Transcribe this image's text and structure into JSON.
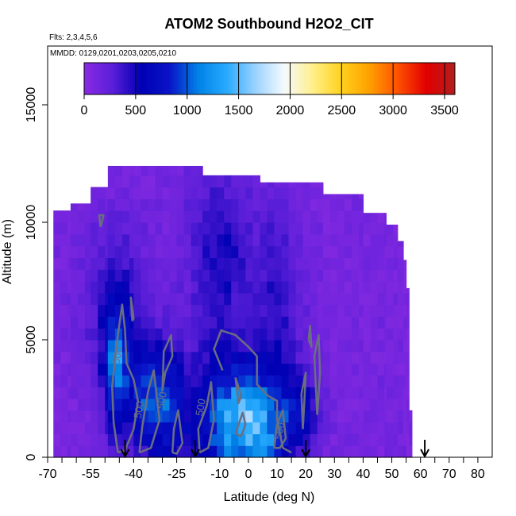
{
  "chart_data": {
    "type": "heatmap",
    "title": "ATOM2 Southbound H2O2_CIT",
    "flights_text": "Flts: 2,3,4,5,6",
    "dates_text": "MMDD: 0129,0201,0203,0205,0210",
    "xlabel": "Latitude (deg N)",
    "ylabel": "Altitude (m)",
    "xlim": [
      -70,
      85
    ],
    "ylim": [
      0,
      17500
    ],
    "x_ticks": [
      -70,
      -55,
      -40,
      -25,
      -10,
      0,
      10,
      20,
      30,
      40,
      50,
      60,
      70,
      80
    ],
    "x_ticks_minor": [
      -65,
      -60,
      -50,
      -45,
      -35,
      -30,
      -20,
      -15,
      -5,
      5,
      15,
      25,
      35,
      45,
      55,
      65,
      75
    ],
    "y_ticks": [
      0,
      5000,
      10000,
      15000
    ],
    "colorbar": {
      "min": 0,
      "max": 3600,
      "ticks": [
        0,
        500,
        1000,
        1500,
        2000,
        2500,
        3000,
        3500
      ],
      "colors": [
        "#8a2be2",
        "#5a1ed8",
        "#0000b4",
        "#0a14c8",
        "#0082e6",
        "#28aaff",
        "#9ad2ff",
        "#f4faff",
        "#fff08c",
        "#ffd21e",
        "#ffa000",
        "#ff5000",
        "#e10000",
        "#b41e1e"
      ]
    },
    "coverage": [
      {
        "lat_from": -68,
        "lat_to": -62,
        "alt_top": 10500
      },
      {
        "lat_from": -62,
        "lat_to": -55,
        "alt_top": 10800
      },
      {
        "lat_from": -55,
        "lat_to": -49,
        "alt_top": 11500
      },
      {
        "lat_from": -49,
        "lat_to": -40,
        "alt_top": 12400
      },
      {
        "lat_from": -40,
        "lat_to": -16,
        "alt_top": 12400
      },
      {
        "lat_from": -16,
        "lat_to": 4,
        "alt_top": 12000
      },
      {
        "lat_from": 4,
        "lat_to": 26,
        "alt_top": 11700
      },
      {
        "lat_from": 26,
        "lat_to": 40,
        "alt_top": 11200
      },
      {
        "lat_from": 40,
        "lat_to": 48,
        "alt_top": 10400
      },
      {
        "lat_from": 48,
        "lat_to": 52,
        "alt_top": 9900
      },
      {
        "lat_from": 52,
        "lat_to": 54,
        "alt_top": 9200
      },
      {
        "lat_from": 54,
        "lat_to": 55,
        "alt_top": 8400
      },
      {
        "lat_from": 55,
        "lat_to": 56,
        "alt_top": 7200
      },
      {
        "lat_from": 56,
        "lat_to": 57,
        "alt_top": 2000
      }
    ],
    "field_blobs": [
      {
        "lat": -5,
        "alt": 1500,
        "sx": 9,
        "sy": 1800,
        "value": 1100
      },
      {
        "lat": 5,
        "alt": 1200,
        "sx": 6,
        "sy": 1500,
        "value": 600
      },
      {
        "lat": -46,
        "alt": 3800,
        "sx": 3,
        "sy": 2000,
        "value": 900
      },
      {
        "lat": -36,
        "alt": 2600,
        "sx": 4,
        "sy": 1600,
        "value": 600
      },
      {
        "lat": -28,
        "alt": 2200,
        "sx": 5,
        "sy": 1800,
        "value": 700
      },
      {
        "lat": 18,
        "alt": 1800,
        "sx": 5,
        "sy": 1200,
        "value": 500
      },
      {
        "lat": -10,
        "alt": 8500,
        "sx": 8,
        "sy": 3000,
        "value": 350
      },
      {
        "lat": 10,
        "alt": 6500,
        "sx": 6,
        "sy": 3000,
        "value": 300
      },
      {
        "lat": -46,
        "alt": 6500,
        "sx": 8,
        "sy": 2500,
        "value": 300
      }
    ],
    "contour_level": 500,
    "contours": [
      [
        [
          -45.5,
          200
        ],
        [
          -47,
          1500
        ],
        [
          -47.5,
          3000
        ],
        [
          -46.5,
          4200
        ],
        [
          -45.5,
          5200
        ],
        [
          -44,
          6500
        ],
        [
          -43,
          5400
        ],
        [
          -42.5,
          4000
        ],
        [
          -40,
          3300
        ],
        [
          -38.5,
          2400
        ],
        [
          -40,
          1200
        ],
        [
          -43,
          300
        ],
        [
          -45.5,
          200
        ]
      ],
      [
        [
          -40.5,
          5800
        ],
        [
          -41,
          6800
        ],
        [
          -40,
          5900
        ],
        [
          -40.5,
          5800
        ]
      ],
      [
        [
          -30,
          2800
        ],
        [
          -29.5,
          4500
        ],
        [
          -27,
          5200
        ],
        [
          -26.5,
          4300
        ],
        [
          -29,
          3600
        ],
        [
          -30,
          2800
        ]
      ],
      [
        [
          -38,
          200
        ],
        [
          -37,
          1300
        ],
        [
          -35,
          2800
        ],
        [
          -33,
          3700
        ],
        [
          -31,
          1600
        ],
        [
          -34,
          400
        ],
        [
          -38,
          200
        ]
      ],
      [
        [
          -26.5,
          200
        ],
        [
          -26,
          1200
        ],
        [
          -24.5,
          2000
        ],
        [
          -23,
          600
        ],
        [
          -25,
          150
        ],
        [
          -26.5,
          200
        ]
      ],
      [
        [
          -17,
          200
        ],
        [
          -17.5,
          1200
        ],
        [
          -14.5,
          2200
        ],
        [
          -13,
          3200
        ],
        [
          -12,
          1600
        ],
        [
          -14,
          400
        ],
        [
          -17,
          200
        ]
      ],
      [
        [
          -9,
          3700
        ],
        [
          -12,
          4600
        ],
        [
          -9.5,
          5400
        ],
        [
          -4.5,
          5200
        ],
        [
          0,
          4700
        ],
        [
          3,
          4300
        ],
        [
          3,
          3100
        ],
        [
          7,
          2600
        ],
        [
          10,
          2400
        ],
        [
          10,
          1600
        ],
        [
          12,
          400
        ],
        [
          15,
          200
        ]
      ],
      [
        [
          -4.5,
          3400
        ],
        [
          -2.5,
          2600
        ],
        [
          -3.5,
          2300
        ],
        [
          -4.5,
          3400
        ]
      ],
      [
        [
          -4.5,
          1000
        ],
        [
          -2,
          1900
        ],
        [
          -1,
          1400
        ],
        [
          -2.5,
          900
        ],
        [
          -4.5,
          1000
        ]
      ],
      [
        [
          9,
          400
        ],
        [
          10,
          1400
        ],
        [
          12,
          2000
        ],
        [
          13,
          800
        ],
        [
          11,
          400
        ],
        [
          9,
          400
        ]
      ],
      [
        [
          19,
          1200
        ],
        [
          18.5,
          2700
        ],
        [
          20,
          3600
        ],
        [
          19.5,
          2400
        ],
        [
          19,
          1200
        ]
      ],
      [
        [
          24,
          1800
        ],
        [
          25,
          3600
        ],
        [
          24.5,
          5200
        ],
        [
          23,
          4300
        ],
        [
          24,
          1800
        ]
      ],
      [
        [
          21,
          5000
        ],
        [
          21.5,
          5600
        ],
        [
          22,
          4700
        ],
        [
          21,
          5000
        ]
      ],
      [
        [
          -51.5,
          9800
        ],
        [
          -52,
          10300
        ],
        [
          -50.5,
          10300
        ],
        [
          -51.5,
          9800
        ]
      ]
    ],
    "contour_labels": [
      {
        "lat": -44.5,
        "alt": 4300,
        "text": "500"
      },
      {
        "lat": -37,
        "alt": 2000,
        "text": "500"
      },
      {
        "lat": -29,
        "alt": 2400,
        "text": "500"
      },
      {
        "lat": -15.5,
        "alt": 2100,
        "text": "500"
      },
      {
        "lat": 12,
        "alt": 1100,
        "text": "500"
      }
    ],
    "flight_markers": [
      {
        "lat": -43
      },
      {
        "lat": -18.5
      },
      {
        "lat": 20
      },
      {
        "lat": 61.5
      }
    ]
  }
}
